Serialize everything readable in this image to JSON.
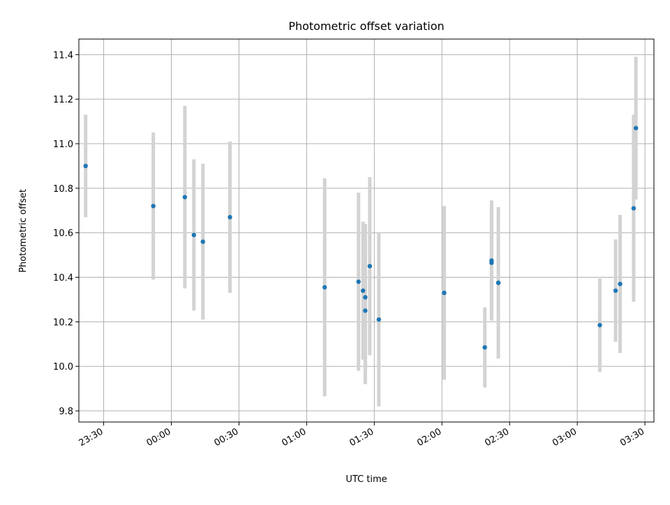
{
  "chart_data": {
    "type": "scatter",
    "title": "Photometric offset variation",
    "xlabel": "UTC time",
    "ylabel": "Photometric offset",
    "x_ticks": [
      "23:30",
      "00:00",
      "00:30",
      "01:00",
      "01:30",
      "02:00",
      "02:30",
      "03:00",
      "03:30"
    ],
    "y_ticks": [
      "9.8",
      "10.0",
      "10.2",
      "10.4",
      "10.6",
      "10.8",
      "11.0",
      "11.2",
      "11.4"
    ],
    "xlim": [
      "23:19",
      "03:34"
    ],
    "ylim": [
      9.75,
      11.47
    ],
    "grid": true,
    "marker_color": "#1f77b4",
    "errorbar_color": "#d3d3d3",
    "points": [
      {
        "time": "23:22",
        "y": 10.9,
        "yerr": 0.23
      },
      {
        "time": "23:52",
        "y": 10.72,
        "yerr": 0.33
      },
      {
        "time": "00:06",
        "y": 10.76,
        "yerr": 0.41
      },
      {
        "time": "00:10",
        "y": 10.59,
        "yerr": 0.34
      },
      {
        "time": "00:14",
        "y": 10.56,
        "yerr": 0.35
      },
      {
        "time": "00:26",
        "y": 10.67,
        "yerr": 0.34
      },
      {
        "time": "01:08",
        "y": 10.355,
        "yerr": 0.49
      },
      {
        "time": "01:23",
        "y": 10.38,
        "yerr": 0.4
      },
      {
        "time": "01:25",
        "y": 10.34,
        "yerr": 0.31
      },
      {
        "time": "01:26",
        "y": 10.31,
        "yerr": 0.33
      },
      {
        "time": "01:26",
        "y": 10.25,
        "yerr": 0.33
      },
      {
        "time": "01:28",
        "y": 10.45,
        "yerr": 0.4
      },
      {
        "time": "01:32",
        "y": 10.21,
        "yerr": 0.39
      },
      {
        "time": "02:01",
        "y": 10.33,
        "yerr": 0.39
      },
      {
        "time": "02:19",
        "y": 10.085,
        "yerr": 0.18
      },
      {
        "time": "02:22",
        "y": 10.465,
        "yerr": 0.24
      },
      {
        "time": "02:22",
        "y": 10.475,
        "yerr": 0.27
      },
      {
        "time": "02:25",
        "y": 10.375,
        "yerr": 0.34
      },
      {
        "time": "02:25",
        "y": 10.375,
        "yerr": 0.34
      },
      {
        "time": "03:10",
        "y": 10.185,
        "yerr": 0.21
      },
      {
        "time": "03:17",
        "y": 10.34,
        "yerr": 0.23
      },
      {
        "time": "03:19",
        "y": 10.37,
        "yerr": 0.31
      },
      {
        "time": "03:25",
        "y": 10.71,
        "yerr": 0.42
      },
      {
        "time": "03:26",
        "y": 11.07,
        "yerr": 0.32
      }
    ]
  }
}
